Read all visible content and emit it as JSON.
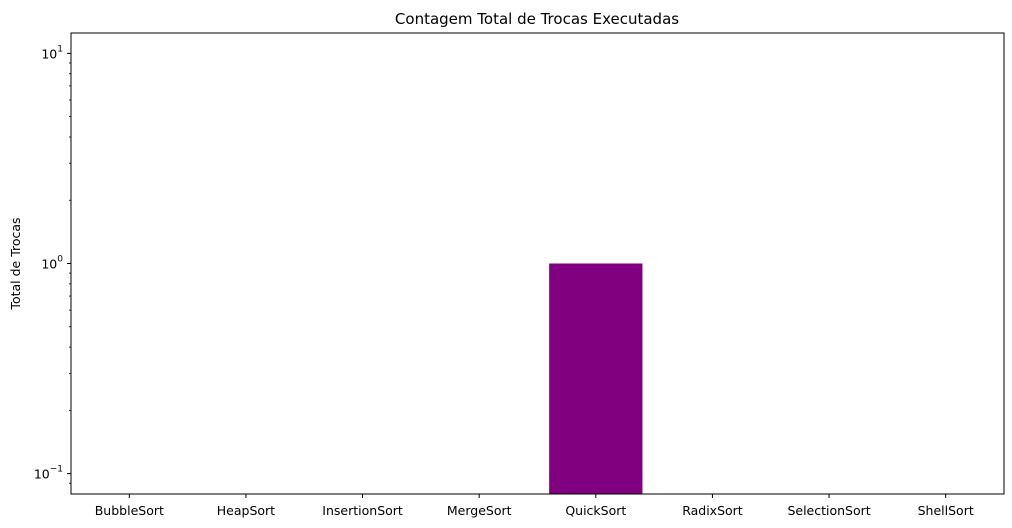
{
  "chart_data": {
    "type": "bar",
    "title": "Contagem Total de Trocas Executadas",
    "xlabel": "",
    "ylabel": "Total de Trocas",
    "yscale": "log",
    "ylim": [
      0.08,
      12.5
    ],
    "categories": [
      "BubbleSort",
      "HeapSort",
      "InsertionSort",
      "MergeSort",
      "QuickSort",
      "RadixSort",
      "SelectionSort",
      "ShellSort"
    ],
    "values": [
      0,
      0,
      0,
      0,
      1,
      0,
      0,
      0
    ],
    "bar_color": "#800080",
    "y_ticks": [
      {
        "value": 0.1,
        "base": "10",
        "exp": "−1"
      },
      {
        "value": 1,
        "base": "10",
        "exp": "0"
      },
      {
        "value": 10,
        "base": "10",
        "exp": "1"
      }
    ],
    "grid": false,
    "legend": "none"
  }
}
